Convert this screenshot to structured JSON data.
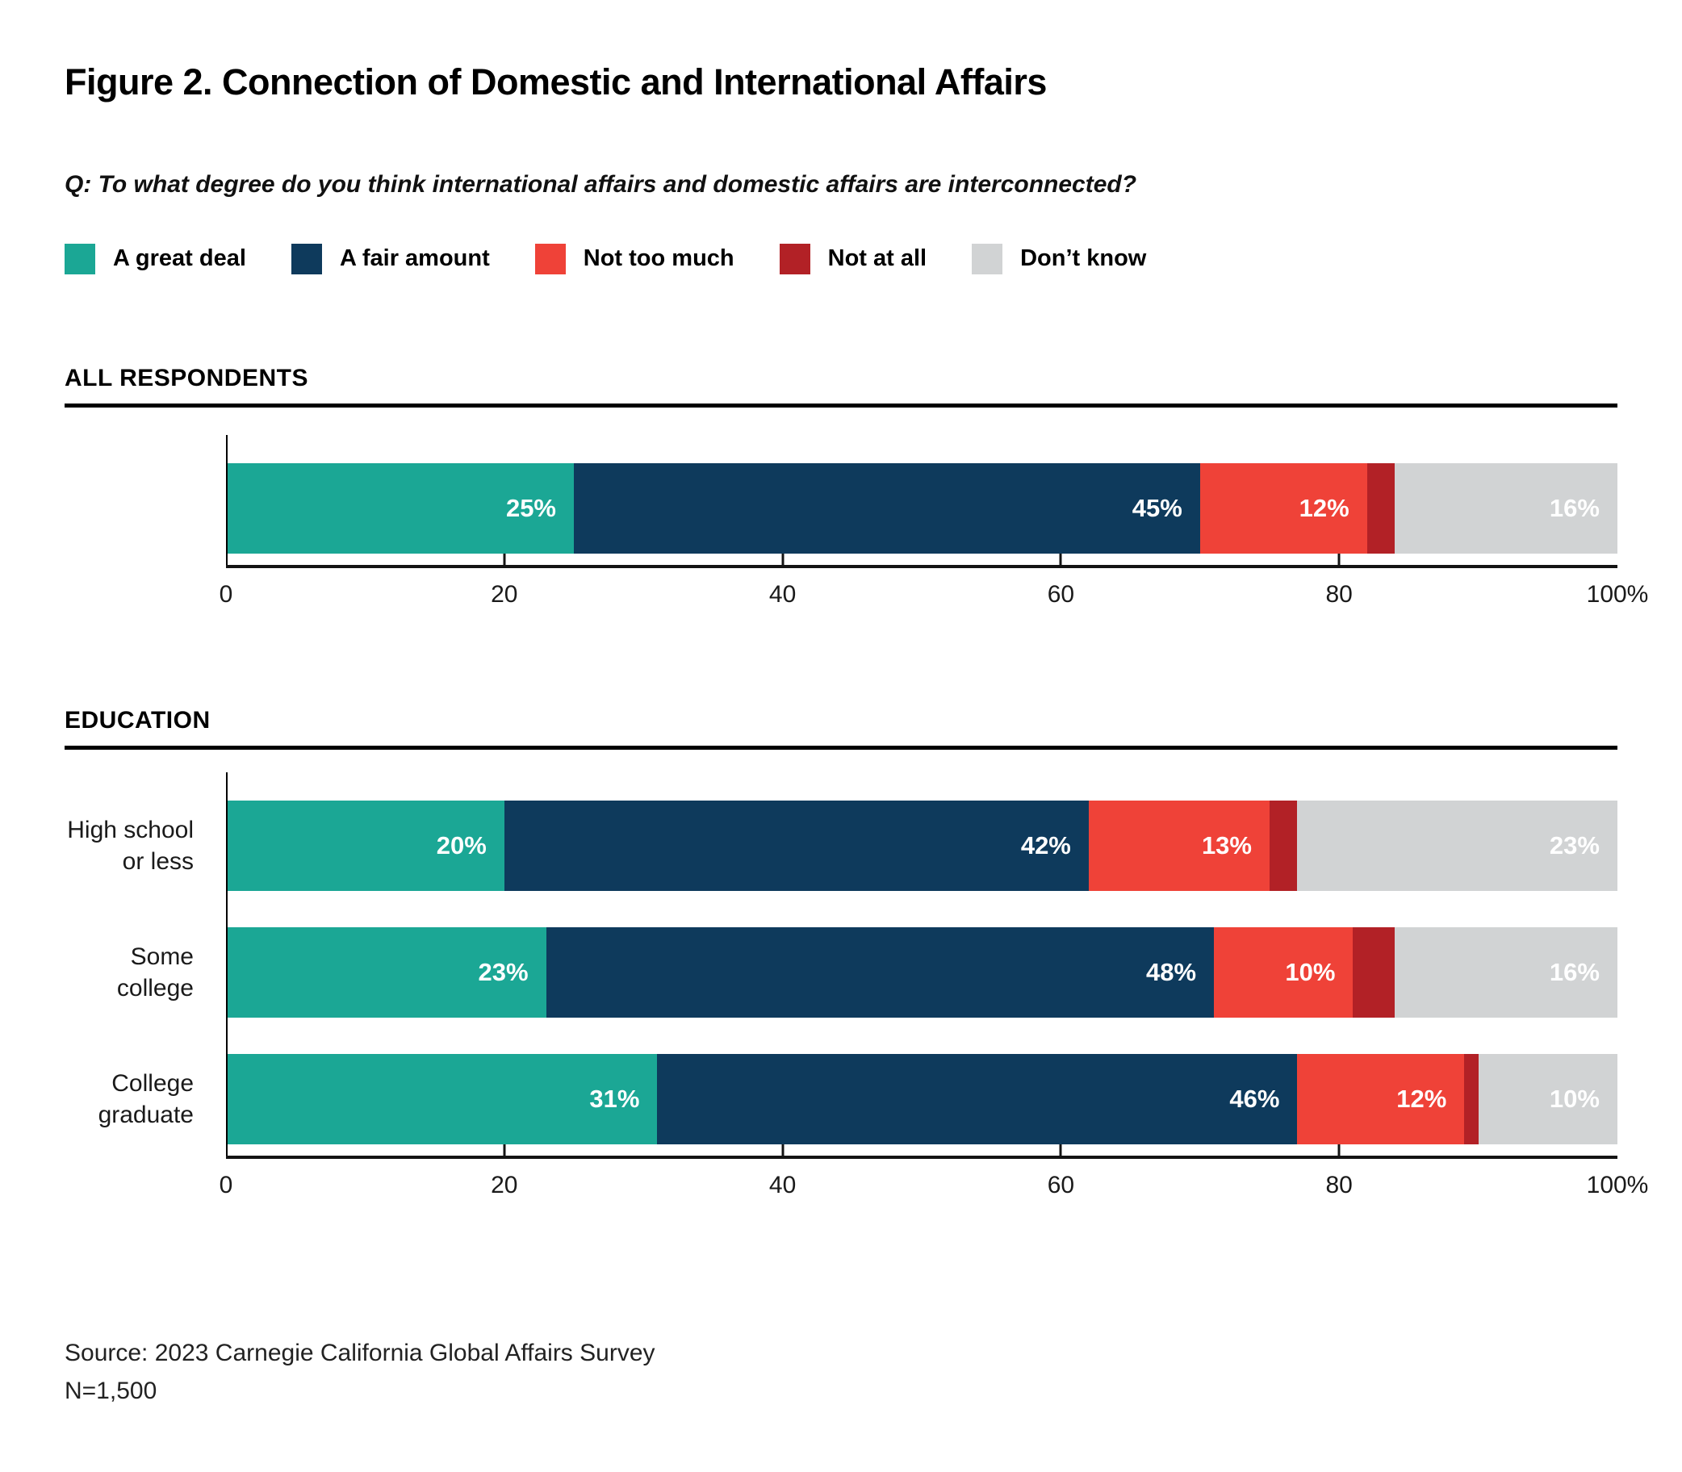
{
  "page": {
    "title": "Figure 2. Connection of Domestic and International Affairs",
    "question": "Q: To what degree do you think international affairs and domestic affairs are interconnected?",
    "source_line1": "Source: 2023 Carnegie California Global Affairs Survey",
    "source_line2": "N=1,500"
  },
  "chart_data": {
    "type": "bar",
    "orientation": "horizontal",
    "stacked": true,
    "grid": false,
    "legend_position": "top",
    "xlim": [
      0,
      100
    ],
    "x_ticks": [
      "0",
      "20",
      "40",
      "60",
      "80",
      "100%"
    ],
    "series": [
      {
        "name": "A great deal",
        "color": "#1BA795"
      },
      {
        "name": "A fair amount",
        "color": "#0E3A5C"
      },
      {
        "name": "Not too much",
        "color": "#EF4238"
      },
      {
        "name": "Not at all",
        "color": "#B22126"
      },
      {
        "name": "Don’t know",
        "color": "#D1D3D4"
      }
    ],
    "hide_value_label_for": "Not at all",
    "value_label_suffix": "%",
    "sections": [
      {
        "heading": "ALL RESPONDENTS",
        "rows": [
          {
            "label": "",
            "label_lines": [],
            "values": [
              25,
              45,
              12,
              2,
              16
            ]
          }
        ]
      },
      {
        "heading": "EDUCATION",
        "rows": [
          {
            "label": "High school or less",
            "label_lines": [
              "High school",
              "or less"
            ],
            "values": [
              20,
              42,
              13,
              2,
              23
            ]
          },
          {
            "label": "Some college",
            "label_lines": [
              "Some college"
            ],
            "values": [
              23,
              48,
              10,
              3,
              16
            ]
          },
          {
            "label": "College graduate",
            "label_lines": [
              "College",
              "graduate"
            ],
            "values": [
              31,
              46,
              12,
              1,
              10
            ]
          }
        ]
      }
    ]
  }
}
